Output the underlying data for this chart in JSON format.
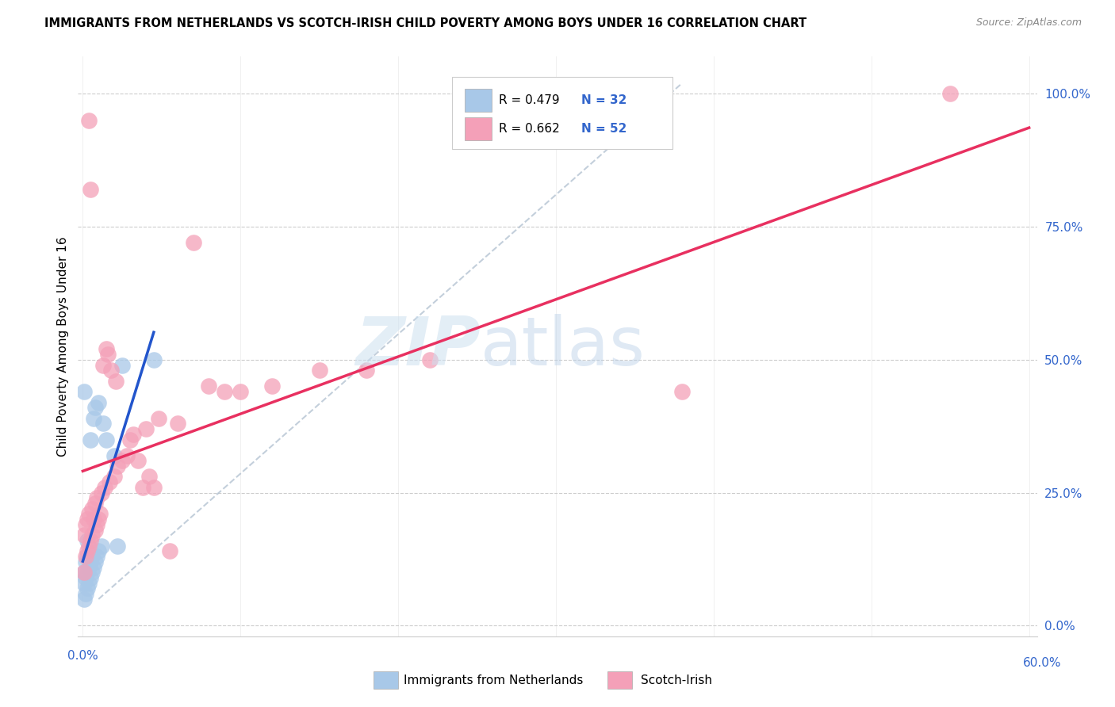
{
  "title": "IMMIGRANTS FROM NETHERLANDS VS SCOTCH-IRISH CHILD POVERTY AMONG BOYS UNDER 16 CORRELATION CHART",
  "source": "Source: ZipAtlas.com",
  "ylabel": "Child Poverty Among Boys Under 16",
  "color_blue": "#a8c8e8",
  "color_pink": "#f4a0b8",
  "color_blue_line": "#2255cc",
  "color_pink_line": "#e83060",
  "color_dashed": "#b0b8c8",
  "netherlands_x": [
    0.001,
    0.001,
    0.001,
    0.001,
    0.002,
    0.002,
    0.002,
    0.003,
    0.003,
    0.003,
    0.003,
    0.004,
    0.004,
    0.005,
    0.005,
    0.005,
    0.006,
    0.006,
    0.007,
    0.007,
    0.008,
    0.008,
    0.009,
    0.01,
    0.01,
    0.012,
    0.013,
    0.015,
    0.02,
    0.022,
    0.025,
    0.045
  ],
  "netherlands_y": [
    0.05,
    0.08,
    0.1,
    0.44,
    0.06,
    0.09,
    0.12,
    0.07,
    0.1,
    0.13,
    0.16,
    0.08,
    0.11,
    0.09,
    0.12,
    0.35,
    0.1,
    0.13,
    0.11,
    0.39,
    0.12,
    0.41,
    0.13,
    0.14,
    0.42,
    0.15,
    0.38,
    0.35,
    0.32,
    0.15,
    0.49,
    0.5
  ],
  "scotch_irish_x": [
    0.001,
    0.001,
    0.002,
    0.002,
    0.003,
    0.003,
    0.004,
    0.004,
    0.004,
    0.005,
    0.005,
    0.006,
    0.006,
    0.007,
    0.008,
    0.008,
    0.009,
    0.009,
    0.01,
    0.011,
    0.012,
    0.013,
    0.014,
    0.015,
    0.016,
    0.017,
    0.018,
    0.02,
    0.021,
    0.022,
    0.025,
    0.028,
    0.03,
    0.032,
    0.035,
    0.038,
    0.04,
    0.042,
    0.045,
    0.048,
    0.055,
    0.06,
    0.07,
    0.08,
    0.09,
    0.1,
    0.12,
    0.15,
    0.18,
    0.22,
    0.38,
    0.55
  ],
  "scotch_irish_y": [
    0.1,
    0.17,
    0.13,
    0.19,
    0.14,
    0.2,
    0.15,
    0.21,
    0.95,
    0.16,
    0.82,
    0.17,
    0.22,
    0.2,
    0.18,
    0.23,
    0.19,
    0.24,
    0.2,
    0.21,
    0.25,
    0.49,
    0.26,
    0.52,
    0.51,
    0.27,
    0.48,
    0.28,
    0.46,
    0.3,
    0.31,
    0.32,
    0.35,
    0.36,
    0.31,
    0.26,
    0.37,
    0.28,
    0.26,
    0.39,
    0.14,
    0.38,
    0.72,
    0.45,
    0.44,
    0.44,
    0.45,
    0.48,
    0.48,
    0.5,
    0.44,
    1.0
  ],
  "xlim_min": 0.0,
  "xlim_max": 0.6,
  "ylim_min": 0.0,
  "ylim_max": 1.05,
  "yticks": [
    0.0,
    0.25,
    0.5,
    0.75,
    1.0
  ],
  "ytick_labels": [
    "0.0%",
    "25.0%",
    "50.0%",
    "75.0%",
    "100.0%"
  ],
  "xtick_left_label": "0.0%",
  "xtick_right_label": "60.0%",
  "legend_r1": "R = 0.479",
  "legend_n1": "N = 32",
  "legend_r2": "R = 0.662",
  "legend_n2": "N = 52",
  "watermark_zip": "ZIP",
  "watermark_atlas": "atlas"
}
